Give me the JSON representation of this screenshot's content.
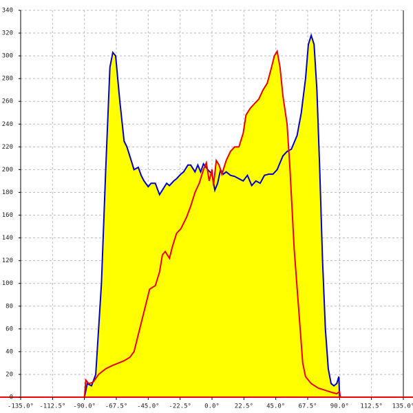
{
  "chart_data": {
    "type": "area",
    "xlim": [
      -135,
      135
    ],
    "ylim": [
      0,
      340
    ],
    "xticks": [
      {
        "value": -135,
        "label": "-135.0°"
      },
      {
        "value": -112.5,
        "label": "-112.5°"
      },
      {
        "value": -90,
        "label": "-90.0°"
      },
      {
        "value": -67.5,
        "label": "-67.5°"
      },
      {
        "value": -45,
        "label": "-45.0°"
      },
      {
        "value": -22.5,
        "label": "-22.5°"
      },
      {
        "value": 0,
        "label": "0.0°"
      },
      {
        "value": 22.5,
        "label": "22.5°"
      },
      {
        "value": 45,
        "label": "45.0°"
      },
      {
        "value": 67.5,
        "label": "67.5°"
      },
      {
        "value": 90,
        "label": "90.0°"
      },
      {
        "value": 112.5,
        "label": "112.5°"
      },
      {
        "value": 135,
        "label": "135.0°"
      }
    ],
    "yticks": [
      0,
      20,
      40,
      60,
      80,
      100,
      120,
      140,
      160,
      180,
      200,
      220,
      240,
      260,
      280,
      300,
      320,
      340
    ],
    "grid": true,
    "fill": "#ffff00",
    "series": [
      {
        "color": "#0000cc",
        "x": [
          -90,
          -88,
          -85,
          -82,
          -78,
          -75,
          -72,
          -70,
          -68,
          -65,
          -62,
          -60,
          -57,
          -55,
          -52,
          -50,
          -48,
          -45,
          -43,
          -40,
          -37,
          -35,
          -32,
          -30,
          -27,
          -25,
          -22,
          -20,
          -17,
          -15,
          -12,
          -10,
          -8,
          -6,
          -3,
          0,
          2,
          4,
          6,
          8,
          10,
          13,
          16,
          19,
          22,
          25,
          28,
          31,
          34,
          37,
          40,
          43,
          46,
          48,
          50,
          53,
          56,
          60,
          63,
          66,
          68,
          70,
          72,
          74,
          76,
          78,
          80,
          82,
          84,
          86,
          88,
          89.5,
          90
        ],
        "values": [
          0,
          12,
          10,
          20,
          100,
          200,
          290,
          303,
          300,
          260,
          225,
          220,
          208,
          200,
          202,
          195,
          190,
          185,
          188,
          188,
          178,
          182,
          188,
          186,
          190,
          192,
          196,
          198,
          204,
          204,
          198,
          204,
          198,
          205,
          200,
          196,
          182,
          188,
          200,
          196,
          198,
          195,
          194,
          192,
          190,
          195,
          186,
          190,
          188,
          195,
          196,
          196,
          200,
          206,
          212,
          216,
          218,
          230,
          250,
          280,
          310,
          318,
          310,
          270,
          200,
          120,
          60,
          25,
          12,
          10,
          12,
          18,
          0
        ]
      },
      {
        "color": "#ee0000",
        "x": [
          -90,
          -89,
          -87,
          -84,
          -80,
          -75,
          -70,
          -66,
          -62,
          -58,
          -55,
          -52,
          -48,
          -44,
          -40,
          -37,
          -35,
          -33,
          -30,
          -28,
          -25,
          -22,
          -18,
          -15,
          -12,
          -9,
          -6,
          -4,
          -2,
          0,
          1,
          3,
          5,
          7,
          10,
          13,
          16,
          19,
          22,
          24,
          27,
          30,
          33,
          36,
          39,
          42,
          44,
          46,
          48,
          50,
          53,
          55,
          58,
          61,
          64,
          66,
          70,
          75,
          80,
          85,
          88,
          90,
          90.5
        ],
        "values": [
          0,
          15,
          12,
          13,
          20,
          25,
          28,
          30,
          32,
          35,
          40,
          55,
          75,
          95,
          98,
          110,
          125,
          128,
          122,
          132,
          144,
          148,
          158,
          168,
          180,
          188,
          200,
          206,
          190,
          200,
          186,
          208,
          204,
          196,
          208,
          216,
          220,
          220,
          232,
          248,
          254,
          258,
          262,
          270,
          276,
          290,
          300,
          304,
          290,
          265,
          240,
          200,
          130,
          80,
          30,
          18,
          12,
          8,
          6,
          4,
          3,
          5,
          0
        ]
      }
    ]
  }
}
